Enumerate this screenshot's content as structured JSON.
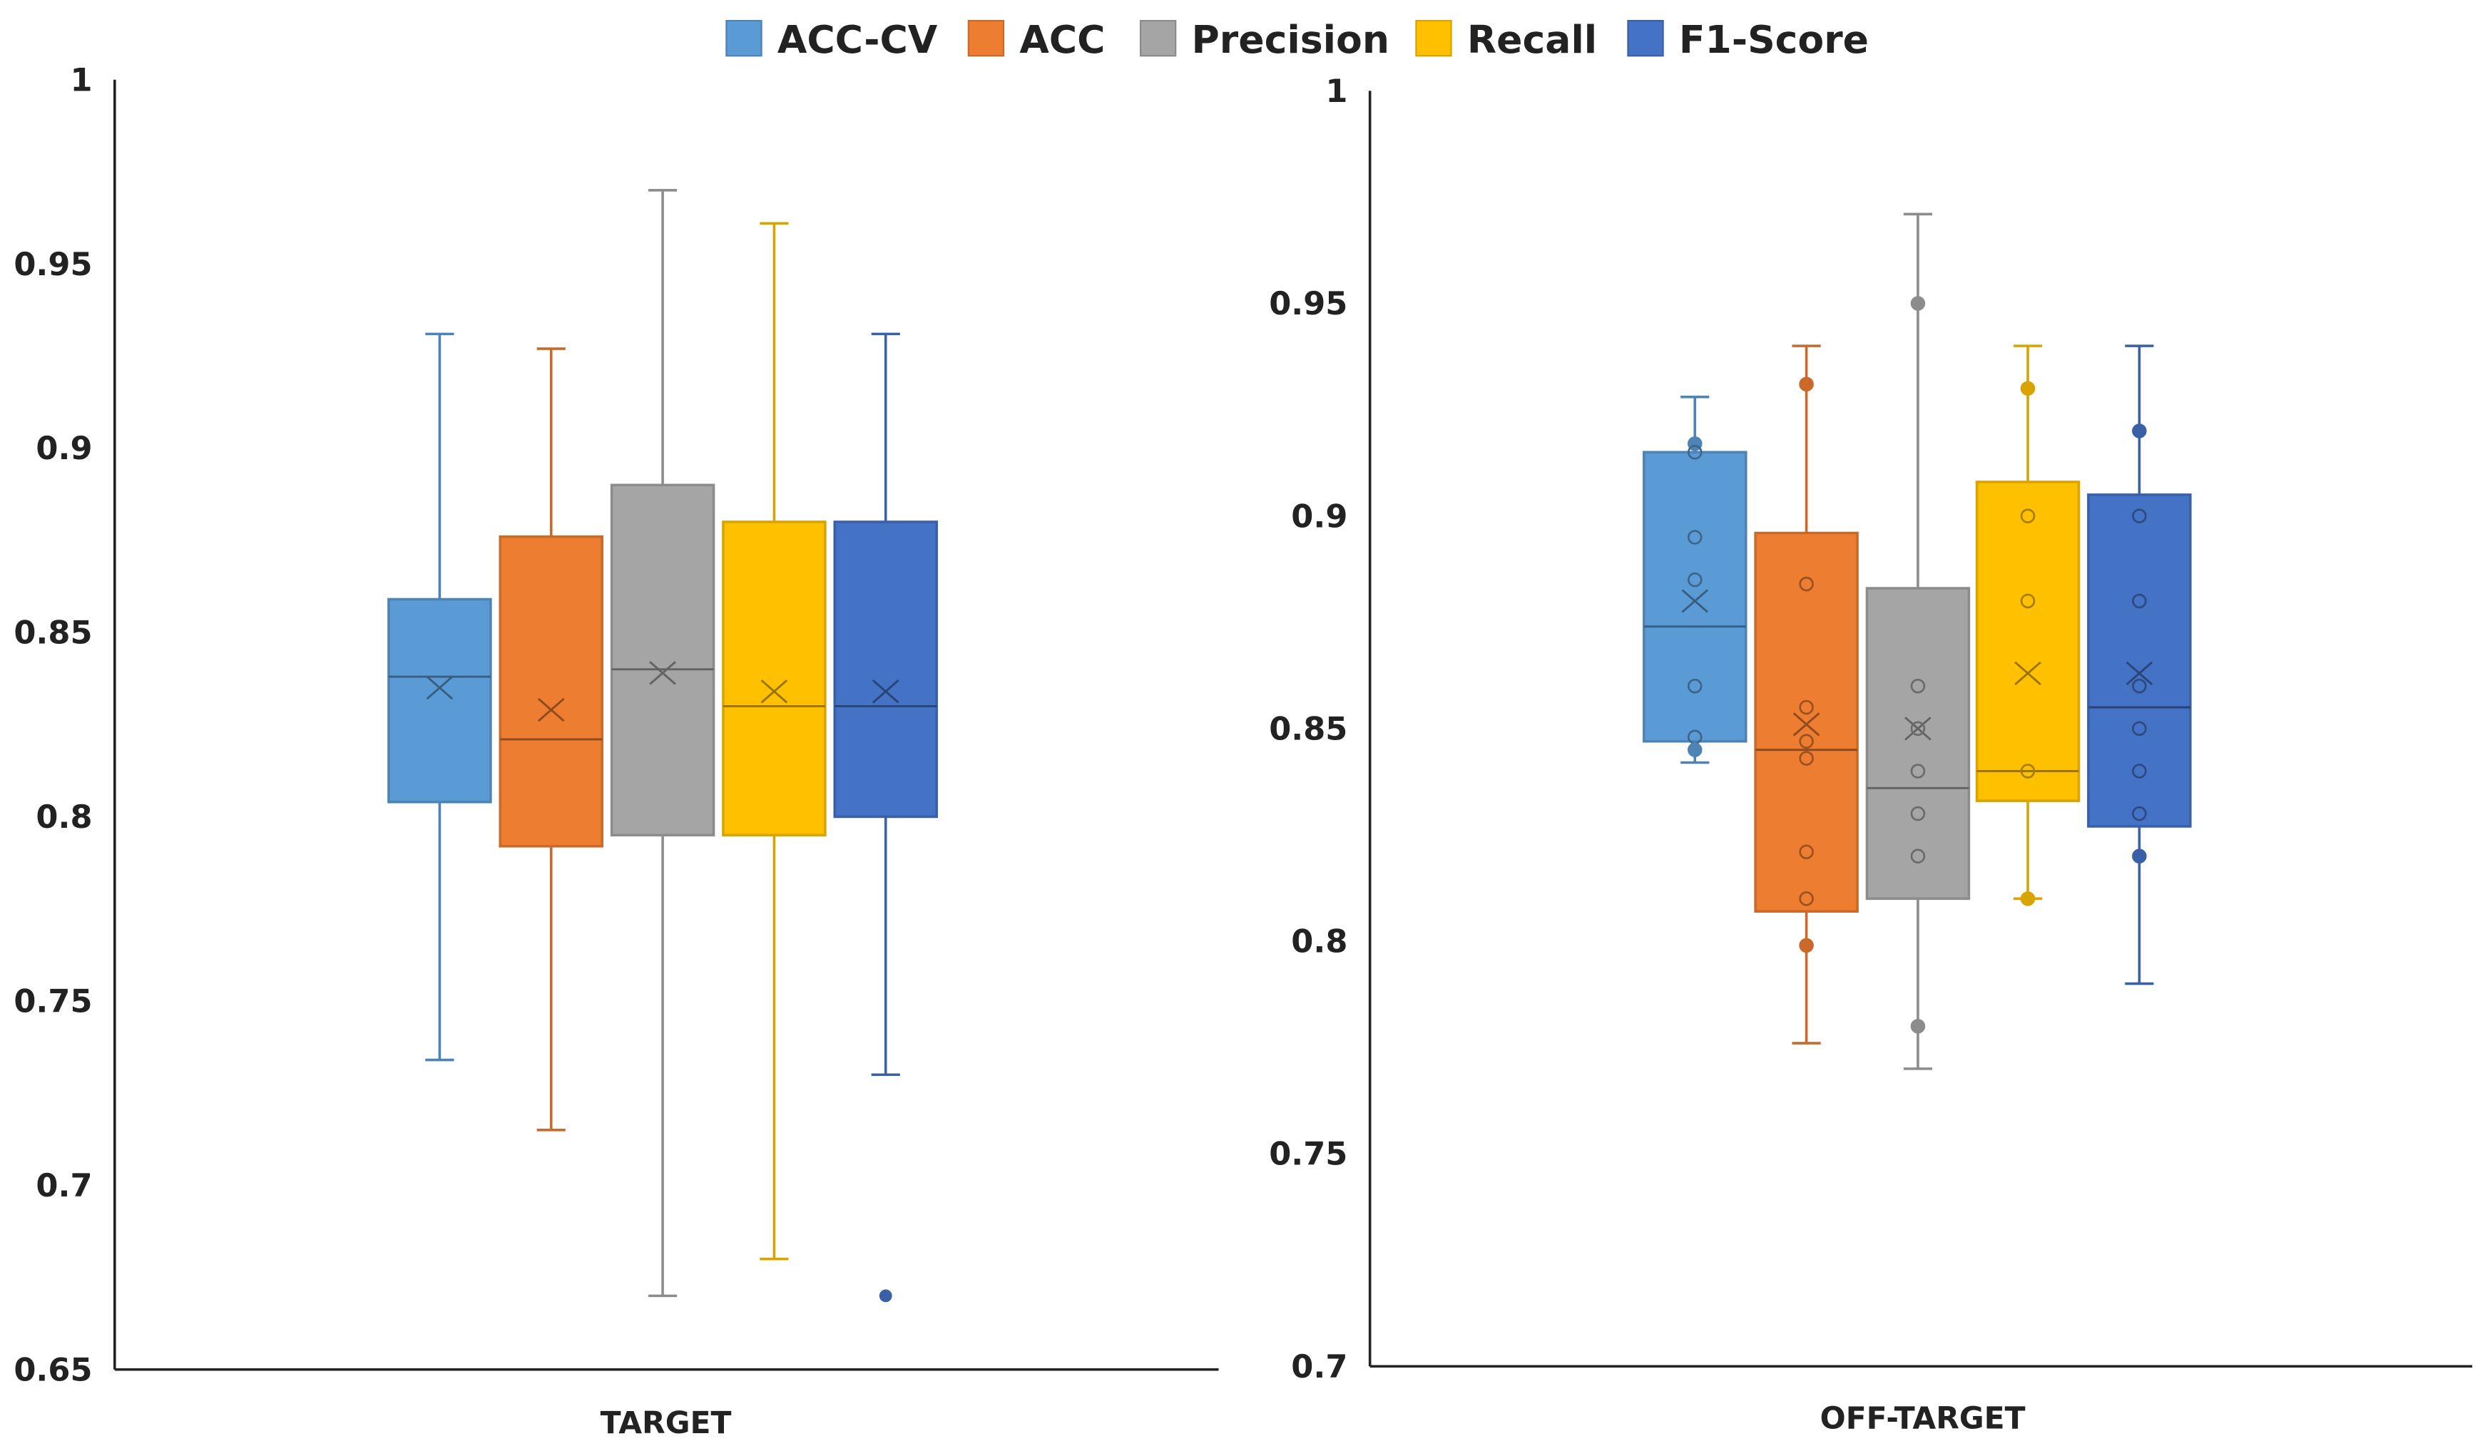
{
  "legend": [
    {
      "name": "ACC-CV",
      "color": "#5B9BD5"
    },
    {
      "name": "ACC",
      "color": "#ED7D31"
    },
    {
      "name": "Precision",
      "color": "#A5A5A5"
    },
    {
      "name": "Recall",
      "color": "#FFC000"
    },
    {
      "name": "F1-Score",
      "color": "#4472C4"
    }
  ],
  "chart_data": [
    {
      "type": "box",
      "xlabel": "TARGET",
      "ylim": [
        0.65,
        1
      ],
      "yticks": [
        "0.65",
        "0.7",
        "0.75",
        "0.8",
        "0.85",
        "0.9",
        "0.95",
        "1"
      ],
      "series": [
        {
          "name": "ACC-CV",
          "min": 0.734,
          "q1": 0.804,
          "median": 0.838,
          "q3": 0.859,
          "max": 0.931,
          "mean": 0.835,
          "points": []
        },
        {
          "name": "ACC",
          "min": 0.715,
          "q1": 0.792,
          "median": 0.821,
          "q3": 0.876,
          "max": 0.927,
          "mean": 0.829,
          "points": []
        },
        {
          "name": "Precision",
          "min": 0.67,
          "q1": 0.795,
          "median": 0.84,
          "q3": 0.89,
          "max": 0.97,
          "mean": 0.839,
          "points": []
        },
        {
          "name": "Recall",
          "min": 0.68,
          "q1": 0.795,
          "median": 0.83,
          "q3": 0.88,
          "max": 0.961,
          "mean": 0.834,
          "points": []
        },
        {
          "name": "F1-Score",
          "min": 0.73,
          "q1": 0.8,
          "median": 0.83,
          "q3": 0.88,
          "max": 0.931,
          "mean": 0.834,
          "points": [],
          "outliers": [
            0.67
          ]
        }
      ]
    },
    {
      "type": "box",
      "xlabel": "OFF-TARGET",
      "ylim": [
        0.7,
        1
      ],
      "yticks": [
        "0.7",
        "0.75",
        "0.8",
        "0.85",
        "0.9",
        "0.95",
        "1"
      ],
      "series": [
        {
          "name": "ACC-CV",
          "min": 0.842,
          "q1": 0.847,
          "median": 0.874,
          "q3": 0.915,
          "max": 0.928,
          "mean": 0.88,
          "points": [
            0.917,
            0.915,
            0.895,
            0.885,
            0.86,
            0.848,
            0.845
          ]
        },
        {
          "name": "ACC",
          "min": 0.776,
          "q1": 0.807,
          "median": 0.845,
          "q3": 0.896,
          "max": 0.94,
          "mean": 0.851,
          "points": [
            0.931,
            0.884,
            0.855,
            0.847,
            0.843,
            0.821,
            0.81,
            0.799
          ]
        },
        {
          "name": "Precision",
          "min": 0.77,
          "q1": 0.81,
          "median": 0.836,
          "q3": 0.883,
          "max": 0.971,
          "mean": 0.85,
          "points": [
            0.95,
            0.86,
            0.85,
            0.84,
            0.83,
            0.82,
            0.78
          ]
        },
        {
          "name": "Recall",
          "min": 0.81,
          "q1": 0.833,
          "median": 0.84,
          "q3": 0.908,
          "max": 0.94,
          "mean": 0.863,
          "points": [
            0.93,
            0.9,
            0.88,
            0.84,
            0.81
          ]
        },
        {
          "name": "F1-Score",
          "min": 0.79,
          "q1": 0.827,
          "median": 0.855,
          "q3": 0.905,
          "max": 0.94,
          "mean": 0.863,
          "points": [
            0.92,
            0.9,
            0.88,
            0.86,
            0.85,
            0.84,
            0.83,
            0.82
          ]
        }
      ]
    }
  ]
}
